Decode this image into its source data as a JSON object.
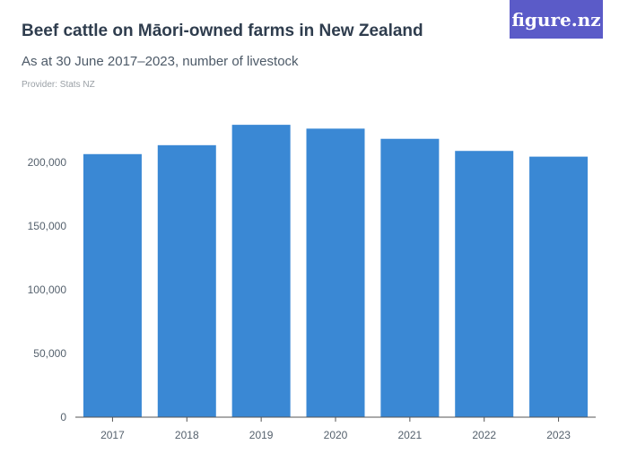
{
  "header": {
    "title": "Beef cattle on Māori-owned farms in New Zealand",
    "subtitle": "As at 30 June 2017–2023,  number of livestock",
    "provider": "Provider: Stats NZ",
    "logo": "figure.nz"
  },
  "colors": {
    "bar": "#3a88d4",
    "logo_bg": "#5b5bc8"
  },
  "chart_data": {
    "type": "bar",
    "categories": [
      "2017",
      "2018",
      "2019",
      "2020",
      "2021",
      "2022",
      "2023"
    ],
    "values": [
      206500,
      213500,
      229500,
      226500,
      218500,
      209000,
      204500
    ],
    "title": "Beef cattle on Māori-owned farms in New Zealand",
    "xlabel": "",
    "ylabel": "",
    "ylim": [
      0,
      250000
    ],
    "yticks": [
      0,
      50000,
      100000,
      150000,
      200000
    ],
    "ytick_labels": [
      "0",
      "50,000",
      "100,000",
      "150,000",
      "200,000"
    ],
    "grid": false,
    "legend": "none"
  }
}
